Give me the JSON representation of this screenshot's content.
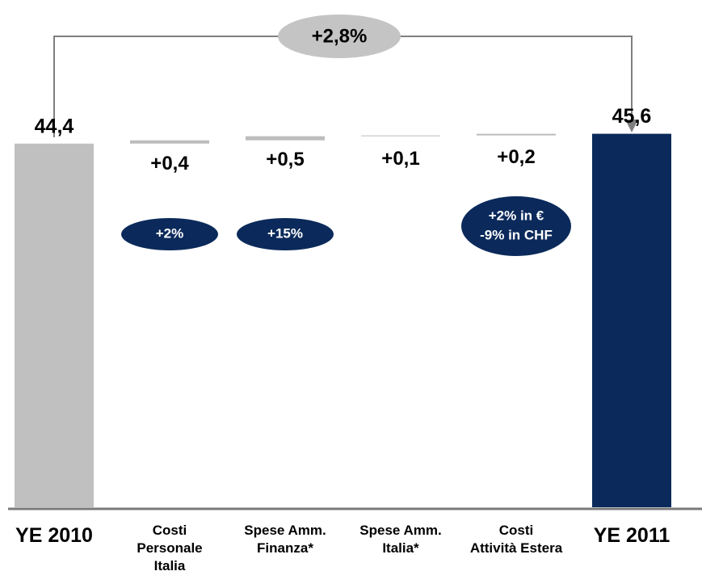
{
  "chart_data": {
    "type": "waterfall",
    "categories": [
      "YE 2010",
      "Costi\nPersonale\nItalia",
      "Spese Amm.\nFinanza*",
      "Spese Amm.\nItalia*",
      "Costi\nAttività Estera",
      "YE 2011"
    ],
    "values": [
      44.4,
      0.4,
      0.5,
      0.1,
      0.2,
      45.6
    ],
    "value_labels": [
      "44,4",
      "+0,4",
      "+0,5",
      "+0,1",
      "+0,2",
      "45,6"
    ],
    "measure": [
      "absolute",
      "relative",
      "relative",
      "relative",
      "relative",
      "absolute"
    ],
    "colors": [
      "#c0c0c0",
      "#bdbdbd",
      "#bdbdbd",
      "#bdbdbd",
      "#bdbdbd",
      "#0b2a5b"
    ],
    "ylim": [
      0,
      50
    ],
    "total_change": "+2,8%",
    "annotations": [
      {
        "category": "Costi\nPersonale\nItalia",
        "lines": [
          "+2%"
        ]
      },
      {
        "category": "Spese Amm.\nFinanza*",
        "lines": [
          "+15%"
        ]
      },
      {
        "category": "Costi\nAttività Estera",
        "lines": [
          "+2% in €",
          "-9% in CHF"
        ]
      }
    ]
  }
}
